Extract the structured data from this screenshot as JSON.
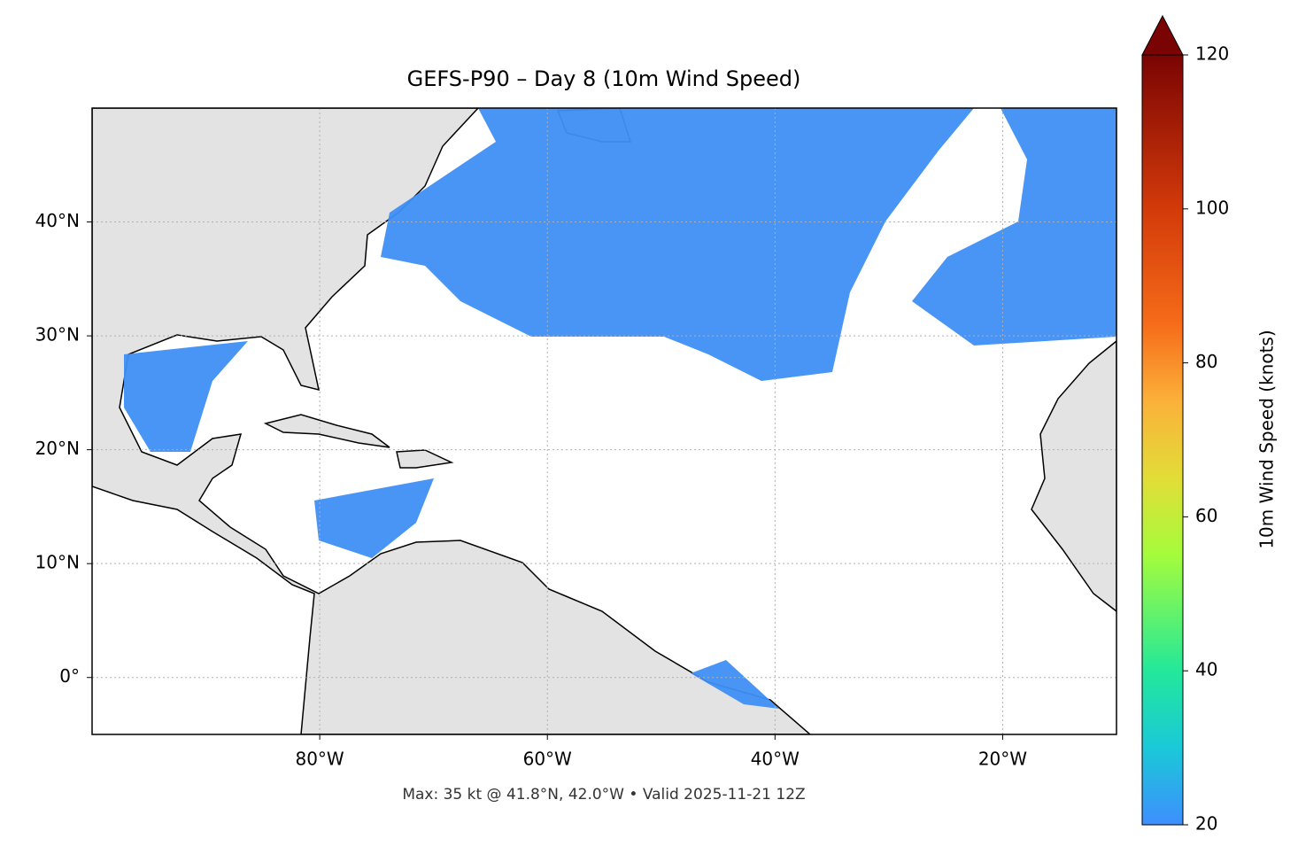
{
  "title": "GEFS-P90 – Day 8 (10m Wind Speed)",
  "footer": "Max: 35 kt @ 41.8°N, 42.0°W • Valid 2025-11-21 12Z",
  "map": {
    "lon_range": [
      -100,
      -10
    ],
    "lat_range": [
      -5,
      50
    ],
    "lon_ticks": [
      {
        "value": -80,
        "label": "80°W"
      },
      {
        "value": -60,
        "label": "60°W"
      },
      {
        "value": -40,
        "label": "40°W"
      },
      {
        "value": -20,
        "label": "20°W"
      }
    ],
    "lat_ticks": [
      {
        "value": 0,
        "label": "0°"
      },
      {
        "value": 10,
        "label": "10°N"
      },
      {
        "value": 20,
        "label": "20°N"
      },
      {
        "value": 30,
        "label": "30°N"
      },
      {
        "value": 40,
        "label": "40°N"
      }
    ]
  },
  "colorbar": {
    "label": "10m Wind Speed (knots)",
    "range": [
      20,
      120
    ],
    "ticks": [
      20,
      40,
      60,
      80,
      100,
      120
    ],
    "extend": "max"
  }
}
